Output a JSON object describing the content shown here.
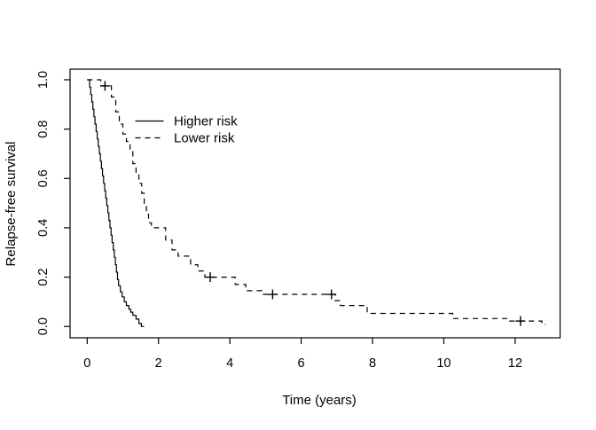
{
  "figure": {
    "background": "#ffffff",
    "axis_color": "#000000",
    "text_color": "#000000",
    "curve_color": "#000000"
  },
  "chart_data": {
    "type": "line",
    "variant": "kaplan-meier-survival-step-curves",
    "title": "",
    "xlabel": "Time (years)",
    "ylabel": "Relapse-free survival",
    "xlim": [
      -0.48,
      13.26
    ],
    "ylim": [
      -0.046,
      1.043
    ],
    "grid": false,
    "x_ticks": {
      "values": [
        0,
        2,
        4,
        6,
        8,
        10,
        12
      ],
      "labels": [
        "0",
        "2",
        "4",
        "6",
        "8",
        "10",
        "12"
      ]
    },
    "y_ticks": {
      "values": [
        0,
        0.2,
        0.4,
        0.6,
        0.8,
        1.0
      ],
      "labels": [
        "0.0",
        "0.2",
        "0.4",
        "0.6",
        "0.8",
        "1.0"
      ],
      "label_rotation_deg": -90
    },
    "legend": {
      "position": "inside-upper-left",
      "entries": [
        {
          "label": "Higher risk",
          "line_style": "solid"
        },
        {
          "label": "Lower risk",
          "line_style": "dashed"
        }
      ]
    },
    "series": [
      {
        "name": "Higher risk",
        "line_style": "solid",
        "color": "#000000",
        "points": [
          [
            0,
            1.0
          ],
          [
            0.07,
            0.97
          ],
          [
            0.1,
            0.94
          ],
          [
            0.13,
            0.91
          ],
          [
            0.16,
            0.88
          ],
          [
            0.19,
            0.85
          ],
          [
            0.22,
            0.82
          ],
          [
            0.25,
            0.79
          ],
          [
            0.28,
            0.76
          ],
          [
            0.31,
            0.73
          ],
          [
            0.34,
            0.7
          ],
          [
            0.37,
            0.67
          ],
          [
            0.4,
            0.64
          ],
          [
            0.43,
            0.61
          ],
          [
            0.46,
            0.58
          ],
          [
            0.49,
            0.55
          ],
          [
            0.52,
            0.52
          ],
          [
            0.55,
            0.49
          ],
          [
            0.58,
            0.46
          ],
          [
            0.61,
            0.43
          ],
          [
            0.64,
            0.4
          ],
          [
            0.67,
            0.37
          ],
          [
            0.7,
            0.34
          ],
          [
            0.73,
            0.31
          ],
          [
            0.76,
            0.28
          ],
          [
            0.79,
            0.25
          ],
          [
            0.82,
            0.22
          ],
          [
            0.85,
            0.19
          ],
          [
            0.88,
            0.165
          ],
          [
            0.93,
            0.14
          ],
          [
            0.98,
            0.12
          ],
          [
            1.04,
            0.1
          ],
          [
            1.1,
            0.085
          ],
          [
            1.17,
            0.07
          ],
          [
            1.22,
            0.058
          ],
          [
            1.28,
            0.045
          ],
          [
            1.37,
            0.03
          ],
          [
            1.45,
            0.012
          ],
          [
            1.52,
            0.0
          ],
          [
            1.6,
            0.0
          ]
        ],
        "censored": []
      },
      {
        "name": "Lower risk",
        "line_style": "dashed",
        "color": "#000000",
        "points": [
          [
            0,
            1.0
          ],
          [
            0.38,
            0.975
          ],
          [
            0.68,
            0.93
          ],
          [
            0.8,
            0.87
          ],
          [
            0.9,
            0.82
          ],
          [
            1.0,
            0.78
          ],
          [
            1.1,
            0.75
          ],
          [
            1.2,
            0.71
          ],
          [
            1.28,
            0.66
          ],
          [
            1.37,
            0.62
          ],
          [
            1.45,
            0.58
          ],
          [
            1.53,
            0.54
          ],
          [
            1.6,
            0.5
          ],
          [
            1.66,
            0.455
          ],
          [
            1.72,
            0.42
          ],
          [
            1.8,
            0.4
          ],
          [
            2.2,
            0.35
          ],
          [
            2.38,
            0.31
          ],
          [
            2.55,
            0.285
          ],
          [
            2.9,
            0.25
          ],
          [
            3.1,
            0.225
          ],
          [
            3.3,
            0.2
          ],
          [
            4.15,
            0.17
          ],
          [
            4.45,
            0.145
          ],
          [
            4.9,
            0.13
          ],
          [
            6.95,
            0.105
          ],
          [
            7.1,
            0.085
          ],
          [
            7.85,
            0.053
          ],
          [
            10.25,
            0.032
          ],
          [
            11.8,
            0.022
          ],
          [
            12.75,
            0.008
          ],
          [
            12.85,
            0.008
          ]
        ],
        "censored": [
          [
            0.5,
            0.975
          ],
          [
            3.45,
            0.2
          ],
          [
            5.2,
            0.13
          ],
          [
            6.85,
            0.13
          ],
          [
            12.15,
            0.022
          ]
        ]
      }
    ]
  }
}
